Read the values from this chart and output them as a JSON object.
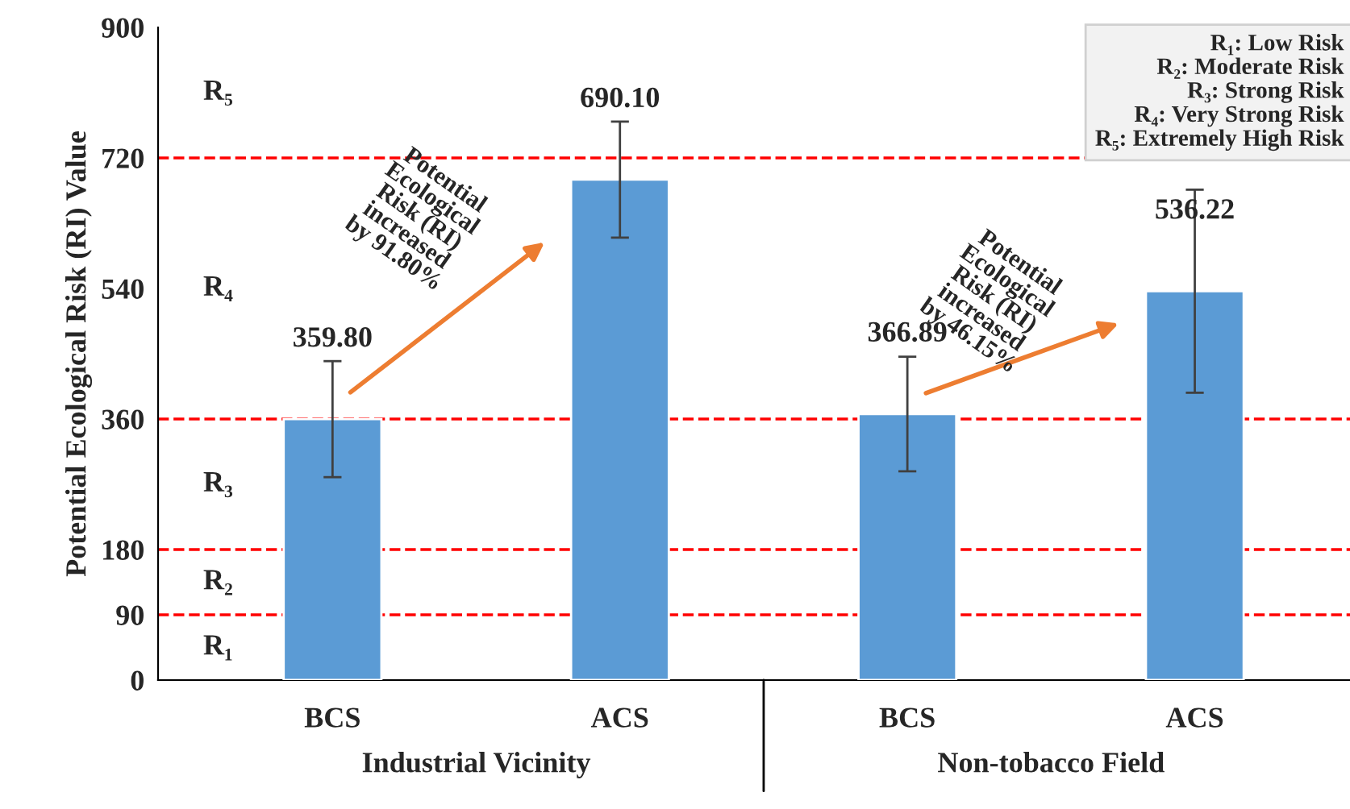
{
  "chart_data": {
    "type": "bar",
    "categories": [
      "BCS",
      "ACS",
      "BCS",
      "ACS"
    ],
    "values": [
      359.8,
      690.1,
      366.89,
      536.22
    ],
    "value_labels": [
      "359.80",
      "690.10",
      "366.89",
      "536.22"
    ],
    "errors": [
      80,
      80,
      79,
      140
    ],
    "color": "#5b9bd5",
    "ylabel": "Potential Ecological Risk (RI) Value",
    "ylim": [
      0,
      900
    ],
    "yticks": [
      0,
      90,
      180,
      360,
      540,
      720,
      900
    ],
    "grid": false,
    "ref_lines": [
      {
        "axis": "y",
        "value": 90,
        "color": "#ff0000",
        "line_style": "dashed"
      },
      {
        "axis": "y",
        "value": 180,
        "color": "#ff0000",
        "line_style": "dashed"
      },
      {
        "axis": "y",
        "value": 360,
        "color": "#ff0000",
        "line_style": "dashed"
      },
      {
        "axis": "y",
        "value": 720,
        "color": "#ff0000",
        "line_style": "dashed"
      }
    ],
    "annotations": [
      "R₁: Low Risk\nR₂: Moderate Risk\nR₃: Strong Risk\nR₄: Very Strong Risk\nR₅: Extremely High Risk",
      "Potential\nEcological\nRisk (RI)\nincreased\nby 91.80%",
      "Potential\nEcological\nRisk (RI)\nincreased\nby 46.15%",
      "Industrial Vicinity",
      "Non-tobacco Field",
      "R₁",
      "R₂",
      "R₃",
      "R₄",
      "R₅"
    ]
  }
}
